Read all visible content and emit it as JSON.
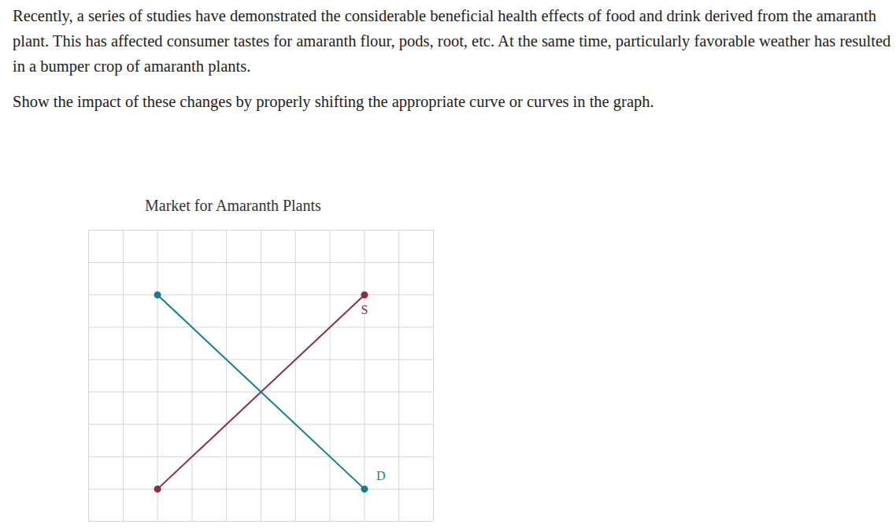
{
  "question": {
    "paragraphs": [
      "Recently, a series of studies have demonstrated the considerable beneficial health effects of food and drink derived from the amaranth plant. This has affected consumer tastes for amaranth flour, pods, root, etc. At the same time, particularly favorable weather has resulted in a bumper crop of amaranth plants.",
      "Show the impact of these changes by properly shifting the appropriate curve or curves in the graph."
    ]
  },
  "chart_data": {
    "type": "line",
    "title": "Market for Amaranth Plants",
    "x": [
      2,
      8
    ],
    "series": [
      {
        "name": "S",
        "color": "#8c2b4b",
        "values": [
          1,
          7
        ],
        "marker": "circle"
      },
      {
        "name": "D",
        "color": "#127f8f",
        "values": [
          7,
          1
        ],
        "marker": "circle"
      }
    ],
    "xlim": [
      0,
      10
    ],
    "ylim": [
      0,
      9
    ],
    "xticks": [
      0,
      1,
      2,
      3,
      4,
      5,
      6,
      7,
      8,
      9,
      10
    ],
    "yticks": [
      0,
      1,
      2,
      3,
      4,
      5,
      6,
      7,
      8,
      9
    ],
    "grid": true,
    "tick_labels": false
  }
}
